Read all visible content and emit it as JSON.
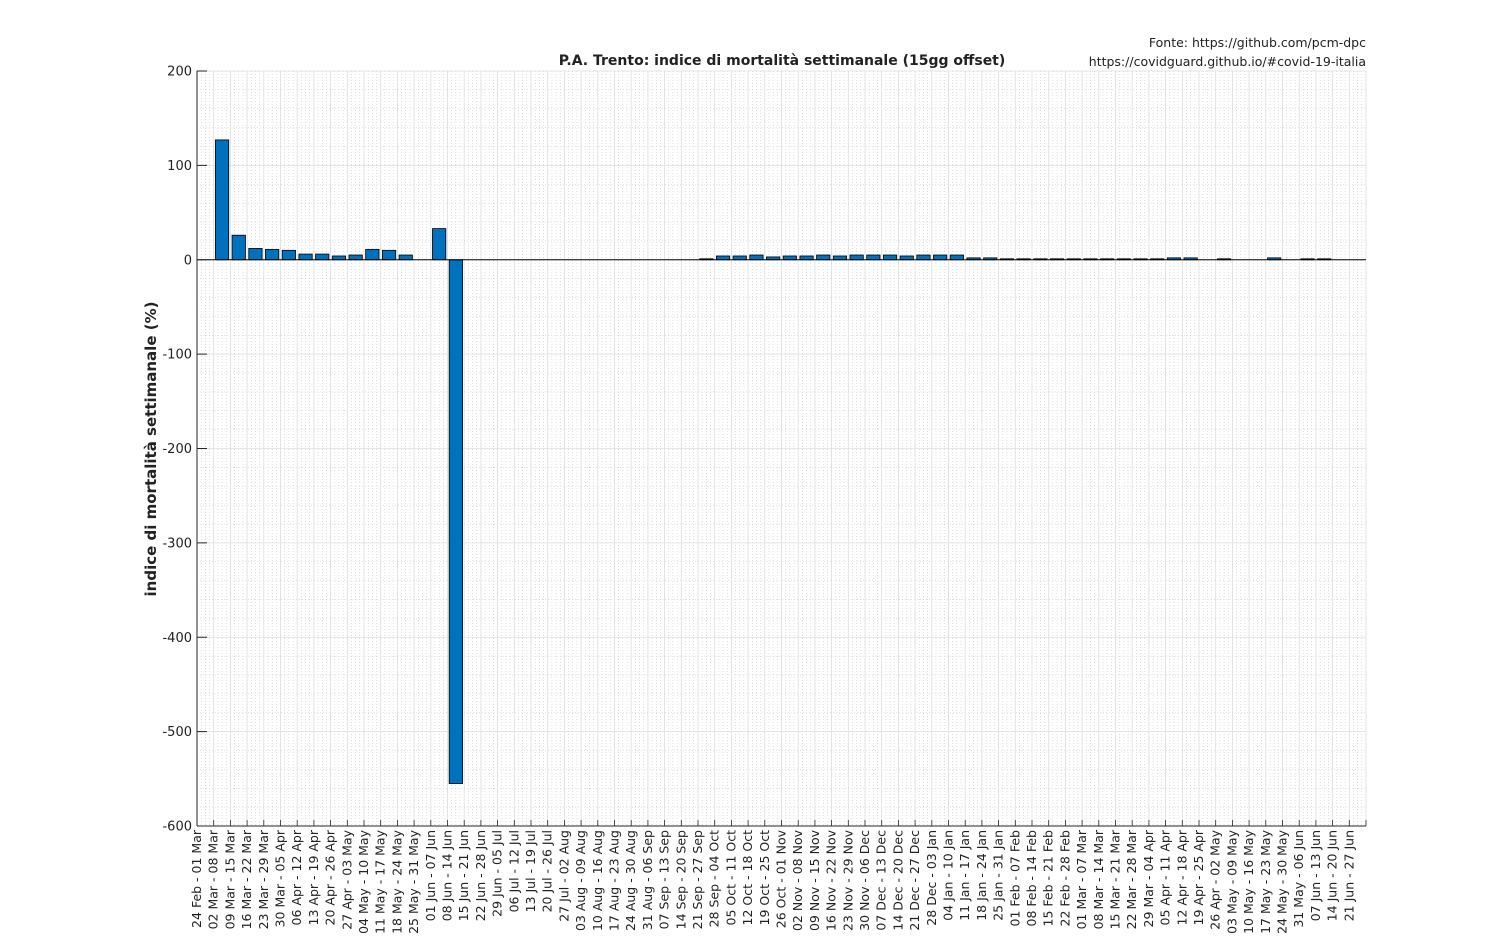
{
  "source": {
    "line1": "Fonte: https://github.com/pcm-dpc",
    "line2": "https://covidguard.github.io/#covid-19-italia"
  },
  "chart_data": {
    "type": "bar",
    "title": "P.A. Trento: indice di mortalità settimanale (15gg offset)",
    "xlabel": "",
    "ylabel": "indice di mortalità settimanale (%)",
    "ylim": [
      -600,
      200
    ],
    "yticks": [
      -600,
      -500,
      -400,
      -300,
      -200,
      -100,
      0,
      100,
      200
    ],
    "grid": "major and minor",
    "bar_color": "#0072BD",
    "categories": [
      "24 Feb - 01 Mar",
      "02 Mar - 08 Mar",
      "09 Mar - 15 Mar",
      "16 Mar - 22 Mar",
      "23 Mar - 29 Mar",
      "30 Mar - 05 Apr",
      "06 Apr - 12 Apr",
      "13 Apr - 19 Apr",
      "20 Apr - 26 Apr",
      "27 Apr - 03 May",
      "04 May - 10 May",
      "11 May - 17 May",
      "18 May - 24 May",
      "25 May - 31 May",
      "01 Jun - 07 Jun",
      "08 Jun - 14 Jun",
      "15 Jun - 21 Jun",
      "22 Jun - 28 Jun",
      "29 Jun - 05 Jul",
      "06 Jul - 12 Jul",
      "13 Jul - 19 Jul",
      "20 Jul - 26 Jul",
      "27 Jul - 02 Aug",
      "03 Aug - 09 Aug",
      "10 Aug - 16 Aug",
      "17 Aug - 23 Aug",
      "24 Aug - 30 Aug",
      "31 Aug - 06 Sep",
      "07 Sep - 13 Sep",
      "14 Sep - 20 Sep",
      "21 Sep - 27 Sep",
      "28 Sep - 04 Oct",
      "05 Oct - 11 Oct",
      "12 Oct - 18 Oct",
      "19 Oct - 25 Oct",
      "26 Oct - 01 Nov",
      "02 Nov - 08 Nov",
      "09 Nov - 15 Nov",
      "16 Nov - 22 Nov",
      "23 Nov - 29 Nov",
      "30 Nov - 06 Dec",
      "07 Dec - 13 Dec",
      "14 Dec - 20 Dec",
      "21 Dec - 27 Dec",
      "28 Dec - 03 Jan",
      "04 Jan - 10 Jan",
      "11 Jan - 17 Jan",
      "18 Jan - 24 Jan",
      "25 Jan - 31 Jan",
      "01 Feb - 07 Feb",
      "08 Feb - 14 Feb",
      "15 Feb - 21 Feb",
      "22 Feb - 28 Feb",
      "01 Mar - 07 Mar",
      "08 Mar - 14 Mar",
      "15 Mar - 21 Mar",
      "22 Mar - 28 Mar",
      "29 Mar - 04 Apr",
      "05 Apr - 11 Apr",
      "12 Apr - 18 Apr",
      "19 Apr - 25 Apr",
      "26 Apr - 02 May",
      "03 May - 09 May",
      "10 May - 16 May",
      "17 May - 23 May",
      "24 May - 30 May",
      "31 May - 06 Jun",
      "07 Jun - 13 Jun",
      "14 Jun - 20 Jun",
      "21 Jun - 27 Jun"
    ],
    "values": [
      0,
      127,
      26,
      12,
      11,
      10,
      6,
      6,
      4,
      5,
      11,
      10,
      5,
      0,
      33,
      -555,
      0,
      0,
      0,
      0,
      0,
      0,
      0,
      0,
      0,
      0,
      0,
      0,
      0,
      0,
      1,
      4,
      4,
      5,
      3,
      4,
      4,
      5,
      4,
      5,
      5,
      5,
      4,
      5,
      5,
      5,
      2,
      2,
      1,
      1,
      1,
      1,
      1,
      1,
      1,
      1,
      1,
      1,
      2,
      2,
      0,
      1,
      0,
      0,
      2,
      0,
      1,
      1,
      0,
      0
    ]
  }
}
